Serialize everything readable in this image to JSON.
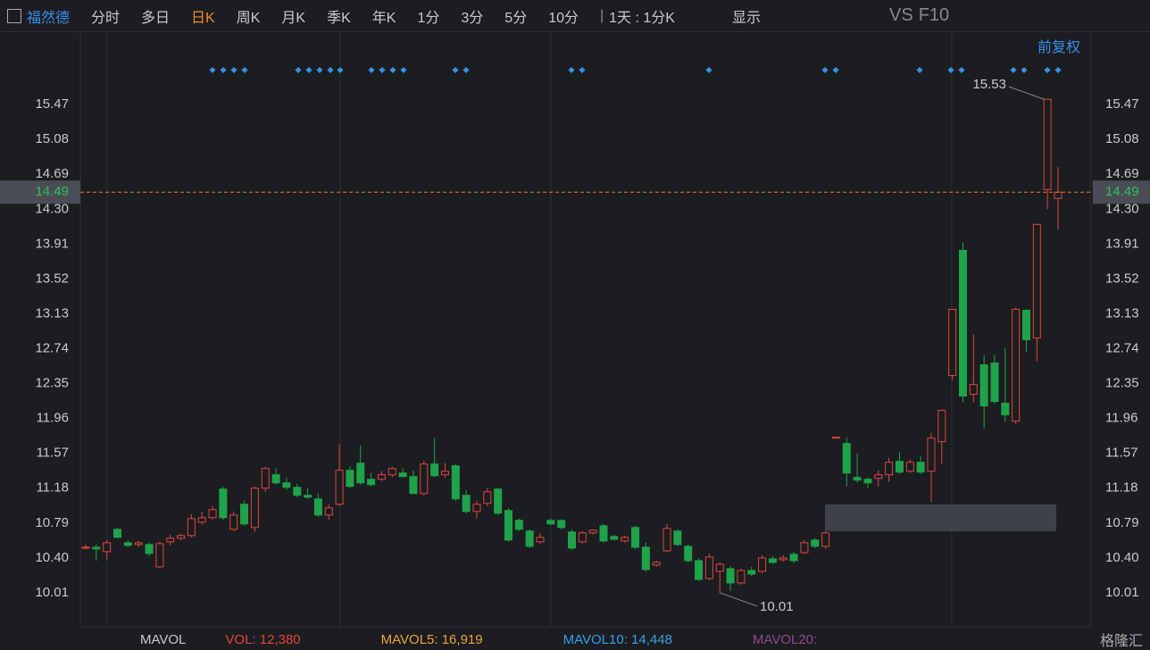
{
  "toolbar": {
    "stock": "福然德",
    "tabs": [
      "分时",
      "多日",
      "日K",
      "周K",
      "月K",
      "季K",
      "年K",
      "1分",
      "3分",
      "5分",
      "10分"
    ],
    "active_tab": 2,
    "period": "1天 : 1分K",
    "display": "显示",
    "vs": "VS",
    "f10": "F10"
  },
  "adjust": "前复权",
  "volume_panel": {
    "title": "MAVOL",
    "items": [
      {
        "text": "VOL: 12,380",
        "color": "#e0453d"
      },
      {
        "text": "MAVOL5: 16,919",
        "color": "#e8a33a"
      },
      {
        "text": "MAVOL10: 14,448",
        "color": "#3a9ee8"
      },
      {
        "text": "MAVOL20:",
        "color": "#8e4a8e"
      }
    ]
  },
  "watermark": "格隆汇",
  "chart_data": {
    "type": "candlestick",
    "up_color": "#e0453d",
    "down_color": "#1fa34a",
    "ylim": [
      9.65,
      16.24
    ],
    "yticks": [
      10.01,
      {
        "value": 10.4,
        "label": "10.40"
      },
      10.79,
      11.18,
      11.57,
      11.96,
      12.35,
      12.74,
      13.13,
      13.52,
      13.91,
      {
        "value": 14.3,
        "label": "14.30"
      },
      14.69,
      15.08,
      15.47
    ],
    "last_price": 14.49,
    "open": [
      10.52,
      10.52,
      10.47,
      10.72,
      10.57,
      10.55,
      10.55,
      10.3,
      10.58,
      10.62,
      10.65,
      10.8,
      10.85,
      11.17,
      10.72,
      11.0,
      10.74,
      11.18,
      11.33,
      11.24,
      11.19,
      11.1,
      11.06,
      10.88,
      11.0,
      11.38,
      11.46,
      11.28,
      11.28,
      11.33,
      11.35,
      11.31,
      11.12,
      11.45,
      11.33,
      11.43,
      11.1,
      10.92,
      11.01,
      11.17,
      10.93,
      10.82,
      10.7,
      10.58,
      10.82,
      10.82,
      10.69,
      10.58,
      10.68,
      10.76,
      10.64,
      10.59,
      10.74,
      10.52,
      10.32,
      10.48,
      10.7,
      10.53,
      10.37,
      10.17,
      10.25,
      10.28,
      10.12,
      10.26,
      10.25,
      10.39,
      10.38,
      10.44,
      10.46,
      10.6,
      10.53,
      11.75,
      11.68,
      11.3,
      11.28,
      11.29,
      11.33,
      11.48,
      11.37,
      11.47,
      11.37,
      11.7,
      12.44,
      13.84,
      12.23,
      12.56,
      12.58,
      12.13,
      11.93,
      13.17,
      12.86,
      14.52,
      14.42
    ],
    "high": [
      10.55,
      10.55,
      10.6,
      10.74,
      10.6,
      10.59,
      10.57,
      10.58,
      10.66,
      10.67,
      10.89,
      10.92,
      10.98,
      11.2,
      10.92,
      11.04,
      11.2,
      11.42,
      11.4,
      11.3,
      11.23,
      11.18,
      11.12,
      11.0,
      11.67,
      11.42,
      11.66,
      11.35,
      11.37,
      11.42,
      11.4,
      11.38,
      11.49,
      11.74,
      11.46,
      11.45,
      11.16,
      11.04,
      11.18,
      11.18,
      10.96,
      10.84,
      10.72,
      10.68,
      10.84,
      10.83,
      10.72,
      10.7,
      10.72,
      10.78,
      10.66,
      10.65,
      10.76,
      10.57,
      10.37,
      10.78,
      10.72,
      10.55,
      10.4,
      10.45,
      10.35,
      10.31,
      10.28,
      10.3,
      10.43,
      10.42,
      10.43,
      10.47,
      10.6,
      10.62,
      10.7,
      11.75,
      11.75,
      11.57,
      11.3,
      11.38,
      11.52,
      11.58,
      11.5,
      11.54,
      11.8,
      12.06,
      13.18,
      13.93,
      12.9,
      12.67,
      12.67,
      12.75,
      13.2,
      13.18,
      14.13,
      15.53,
      14.77
    ],
    "low": [
      10.49,
      10.37,
      10.38,
      10.62,
      10.52,
      10.52,
      10.42,
      10.29,
      10.54,
      10.6,
      10.63,
      10.77,
      10.83,
      10.82,
      10.7,
      10.76,
      10.69,
      11.14,
      11.22,
      11.16,
      11.08,
      11.06,
      10.86,
      10.82,
      10.98,
      11.18,
      11.22,
      11.2,
      11.26,
      11.3,
      11.3,
      11.12,
      11.1,
      11.3,
      11.3,
      11.04,
      10.9,
      10.84,
      10.98,
      10.88,
      10.58,
      10.7,
      10.51,
      10.56,
      10.77,
      10.72,
      10.49,
      10.56,
      10.66,
      10.57,
      10.59,
      10.57,
      10.5,
      10.25,
      10.3,
      10.46,
      10.53,
      10.35,
      10.14,
      10.15,
      10.01,
      10.03,
      10.1,
      10.2,
      10.23,
      10.33,
      10.36,
      10.34,
      10.44,
      10.51,
      10.5,
      11.75,
      11.2,
      11.24,
      11.18,
      11.2,
      11.25,
      11.34,
      11.35,
      11.34,
      11.02,
      11.45,
      12.39,
      12.14,
      12.14,
      11.85,
      12.12,
      11.92,
      11.9,
      12.7,
      12.6,
      14.3,
      14.07
    ],
    "close": [
      10.52,
      10.5,
      10.57,
      10.63,
      10.54,
      10.57,
      10.45,
      10.56,
      10.62,
      10.65,
      10.84,
      10.85,
      10.94,
      10.85,
      10.88,
      10.78,
      11.18,
      11.4,
      11.24,
      11.19,
      11.1,
      11.08,
      10.88,
      10.96,
      11.38,
      11.2,
      11.24,
      11.22,
      11.33,
      11.4,
      11.31,
      11.12,
      11.45,
      11.32,
      11.37,
      11.06,
      10.92,
      11.0,
      11.14,
      10.9,
      10.6,
      10.72,
      10.53,
      10.63,
      10.78,
      10.74,
      10.51,
      10.68,
      10.71,
      10.59,
      10.61,
      10.63,
      10.52,
      10.27,
      10.35,
      10.73,
      10.55,
      10.37,
      10.16,
      10.41,
      10.33,
      10.12,
      10.26,
      10.22,
      10.4,
      10.35,
      10.4,
      10.37,
      10.57,
      10.53,
      10.68,
      11.75,
      11.35,
      11.27,
      11.24,
      11.33,
      11.47,
      11.36,
      11.47,
      11.36,
      11.74,
      12.05,
      13.18,
      12.21,
      12.34,
      12.1,
      12.15,
      12.0,
      13.18,
      12.84,
      14.13,
      15.53,
      14.49
    ]
  }
}
